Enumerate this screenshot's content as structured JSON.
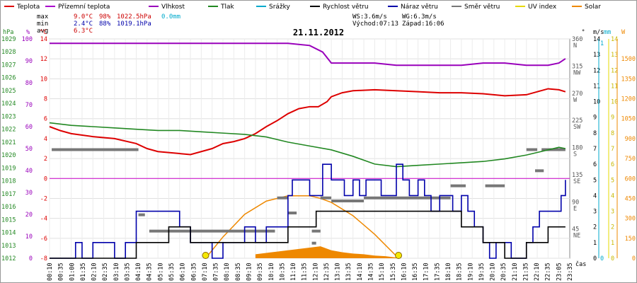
{
  "chart_data": {
    "type": "line",
    "title": "21.11.2012",
    "legend": [
      {
        "label": "Teplota",
        "color": "#dd0000"
      },
      {
        "label": "Přízemní teplota",
        "color": "#aa00cc"
      },
      {
        "label": "Vlhkost",
        "color": "#9900bb"
      },
      {
        "label": "Tlak",
        "color": "#228822"
      },
      {
        "label": "Srážky",
        "color": "#00aacc"
      },
      {
        "label": "Rychlost větru",
        "color": "#000000"
      },
      {
        "label": "Náraz větru",
        "color": "#0000aa"
      },
      {
        "label": "Směr větru",
        "color": "#777777"
      },
      {
        "label": "UV index",
        "color": "#e6d800"
      },
      {
        "label": "Solar",
        "color": "#ee8800"
      }
    ],
    "stats": [
      {
        "label": "max",
        "temp": "9.0°C",
        "hum": "98%",
        "press": "1022.5hPa",
        "rain": "0.0mm"
      },
      {
        "label": "min",
        "temp": "2.4°C",
        "hum": "88%",
        "press": "1019.1hPa",
        "rain": ""
      },
      {
        "label": "avg",
        "temp": "6.3°C",
        "hum": "",
        "press": "",
        "rain": ""
      }
    ],
    "wind_info": {
      "ws": "WS:3.6m/s",
      "wg": "WG:6.3m/s",
      "sunrise": "Východ:07:13",
      "sunset": "Západ:16:06"
    },
    "axes": {
      "hpa": {
        "unit": "hPa",
        "range": [
          1012,
          1029
        ],
        "ticks": [
          1012,
          1013,
          1014,
          1015,
          1016,
          1017,
          1018,
          1019,
          1020,
          1021,
          1022,
          1023,
          1024,
          1025,
          1026,
          1027,
          1028,
          1029
        ]
      },
      "pct": {
        "unit": "%",
        "range": [
          0,
          100
        ],
        "ticks": [
          0,
          10,
          20,
          30,
          40,
          50,
          60,
          70,
          80,
          90,
          100
        ]
      },
      "temp": {
        "unit": "°C",
        "range": [
          -8,
          14
        ],
        "ticks": [
          -8,
          -6,
          -4,
          -2,
          0,
          2,
          4,
          6,
          8,
          10,
          12,
          14
        ]
      },
      "ms": {
        "unit": "m/s",
        "range": [
          0,
          14
        ],
        "ticks": [
          0,
          1,
          2,
          3,
          4,
          5,
          6,
          7,
          8,
          9,
          10,
          11,
          12,
          13,
          14
        ]
      },
      "dir": {
        "ticks": [
          "360 N",
          "315 NW",
          "270 W",
          "225 SW",
          "180 S",
          "135 SE",
          "90 E",
          "45 NE"
        ]
      },
      "mm": {
        "unit": "mm",
        "ticks": [
          "0",
          "1"
        ]
      },
      "uv": {
        "ticks": [
          0,
          1,
          2,
          3,
          4,
          5,
          6,
          7,
          8,
          9,
          10,
          11,
          12,
          13,
          14
        ]
      },
      "solar": {
        "unit": "W",
        "ticks": [
          0,
          150,
          300,
          450,
          600,
          750,
          900,
          1050,
          1200,
          1350,
          1500
        ]
      },
      "x_label": "čas",
      "x_ticks": [
        "00:10",
        "00:35",
        "01:00",
        "01:35",
        "02:10",
        "02:35",
        "03:10",
        "03:35",
        "04:10",
        "04:35",
        "05:10",
        "05:35",
        "06:10",
        "06:35",
        "07:10",
        "07:35",
        "08:10",
        "08:35",
        "09:10",
        "09:35",
        "10:10",
        "10:35",
        "11:10",
        "11:35",
        "12:10",
        "12:35",
        "13:10",
        "13:35",
        "14:10",
        "14:35",
        "15:10",
        "15:35",
        "16:10",
        "16:35",
        "17:10",
        "17:35",
        "18:10",
        "18:35",
        "19:10",
        "19:35",
        "20:10",
        "20:35",
        "21:10",
        "21:35",
        "22:10",
        "22:35",
        "23:05",
        "23:35"
      ]
    },
    "x_range": [
      0,
      24
    ],
    "series": [
      {
        "name": "Vlhkost",
        "color": "#9900bb",
        "axis": "pct",
        "x": [
          0,
          2,
          4,
          6,
          8,
          10,
          11,
          12,
          12.6,
          13,
          14,
          15,
          16,
          17,
          18,
          19,
          20,
          21,
          22,
          22.6,
          23,
          23.5,
          23.8
        ],
        "values": [
          98,
          98,
          98,
          98,
          98,
          98,
          98,
          97,
          94,
          89,
          89,
          89,
          88,
          88,
          88,
          88,
          89,
          89,
          88,
          88,
          88,
          89,
          91
        ]
      },
      {
        "name": "Teplota",
        "color": "#dd0000",
        "axis": "temp",
        "x": [
          0,
          0.5,
          1,
          2,
          3,
          4,
          4.5,
          5,
          6,
          6.5,
          7,
          7.5,
          8,
          8.5,
          9,
          9.5,
          10,
          10.5,
          11,
          11.5,
          12,
          12.4,
          12.8,
          13,
          13.5,
          14,
          15,
          16,
          17,
          18,
          19,
          20,
          21,
          22,
          22.5,
          23,
          23.5,
          23.8
        ],
        "values": [
          5.2,
          4.8,
          4.5,
          4.2,
          4.0,
          3.5,
          3.0,
          2.7,
          2.5,
          2.4,
          2.7,
          3.0,
          3.5,
          3.7,
          4.0,
          4.5,
          5.2,
          5.8,
          6.5,
          7.0,
          7.2,
          7.2,
          7.7,
          8.2,
          8.6,
          8.8,
          8.9,
          8.8,
          8.7,
          8.6,
          8.6,
          8.5,
          8.3,
          8.4,
          8.7,
          9.0,
          8.9,
          8.7
        ]
      },
      {
        "name": "Tlak",
        "color": "#228822",
        "axis": "hpa",
        "x": [
          0,
          1,
          2,
          3,
          4,
          5,
          6,
          7,
          8,
          9,
          10,
          11,
          12,
          13,
          14,
          15,
          16,
          17,
          18,
          19,
          20,
          21,
          22,
          22.5,
          23,
          23.5,
          23.8
        ],
        "values": [
          1022.5,
          1022.3,
          1022.2,
          1022.1,
          1022.0,
          1021.9,
          1021.9,
          1021.8,
          1021.7,
          1021.6,
          1021.4,
          1021.0,
          1020.7,
          1020.4,
          1019.9,
          1019.3,
          1019.1,
          1019.2,
          1019.3,
          1019.4,
          1019.5,
          1019.7,
          1020.0,
          1020.2,
          1020.4,
          1020.6,
          1020.5
        ]
      },
      {
        "name": "Náraz větru",
        "color": "#0000aa",
        "axis": "ms",
        "x": [
          0,
          1,
          1.2,
          1.5,
          2,
          2.5,
          3,
          3.5,
          4,
          4.5,
          5,
          5.5,
          6,
          6.5,
          7,
          7.5,
          8,
          8.5,
          9,
          9.5,
          10,
          10.5,
          11,
          11.2,
          11.5,
          12,
          12.3,
          12.6,
          12.8,
          13,
          13.3,
          13.6,
          14,
          14.3,
          14.6,
          15,
          15.3,
          15.6,
          16,
          16.3,
          16.6,
          17,
          17.3,
          17.6,
          18,
          18.3,
          18.6,
          19,
          19.3,
          19.6,
          20,
          20.3,
          20.6,
          21,
          21.3,
          21.6,
          22,
          22.3,
          22.6,
          23,
          23.3,
          23.6,
          23.8
        ],
        "values": [
          0,
          0,
          1,
          0,
          1,
          1,
          0,
          1,
          3,
          3,
          3,
          3,
          2,
          1,
          1,
          0,
          1,
          1,
          2,
          1,
          2,
          2,
          4,
          5,
          5,
          4,
          4,
          6,
          6,
          5,
          5,
          4,
          5,
          4,
          5,
          5,
          4,
          4,
          6,
          5,
          4,
          5,
          4,
          3,
          4,
          4,
          3,
          4,
          3,
          2,
          1,
          0,
          1,
          1,
          0,
          0,
          1,
          2,
          3,
          3,
          3,
          4,
          5
        ]
      },
      {
        "name": "Rychlost větru",
        "color": "#000000",
        "axis": "ms",
        "x": [
          0,
          1,
          2,
          3,
          3.5,
          4,
          4.5,
          5,
          5.5,
          6,
          6.5,
          7,
          7.5,
          8,
          8.5,
          9,
          9.5,
          10,
          10.5,
          11,
          11.5,
          12,
          12.3,
          12.6,
          13,
          13.5,
          14,
          14.5,
          15,
          15.5,
          16,
          16.5,
          17,
          17.5,
          18,
          18.5,
          19,
          19.5,
          20,
          20.5,
          21,
          21.5,
          22,
          22.5,
          23,
          23.5,
          23.8
        ],
        "values": [
          0,
          0,
          0,
          0,
          0,
          1,
          1,
          1,
          2,
          2,
          1,
          1,
          1,
          1,
          1,
          1,
          1,
          1,
          1,
          2,
          2,
          2,
          3,
          3,
          3,
          3,
          3,
          3,
          3,
          3,
          3,
          3,
          3,
          3,
          3,
          3,
          2,
          2,
          1,
          1,
          0,
          0,
          1,
          1,
          2,
          2,
          2
        ]
      }
    ],
    "solar": {
      "name": "Solar",
      "color": "#ee8800",
      "axis": "solar",
      "x": [
        7.2,
        8,
        9,
        10,
        11,
        12,
        12.5,
        13,
        14,
        15,
        16.1
      ],
      "values": [
        0,
        160,
        330,
        430,
        470,
        470,
        450,
        420,
        320,
        180,
        0
      ]
    },
    "solar_area": {
      "x": [
        9.5,
        10,
        10.5,
        11,
        11.5,
        12,
        12.5,
        13,
        13.5,
        14,
        14.5,
        15,
        15.5,
        16
      ],
      "values": [
        30,
        40,
        50,
        60,
        70,
        80,
        90,
        60,
        45,
        35,
        30,
        20,
        15,
        5
      ]
    },
    "sun_markers": [
      {
        "label": "sunrise",
        "x": 7.2
      },
      {
        "label": "sunset",
        "x": 16.1
      }
    ],
    "direction_segments": [
      {
        "x0": 0.1,
        "x1": 4.1,
        "deg": 180
      },
      {
        "x0": 4.6,
        "x1": 10.4,
        "deg": 45
      },
      {
        "x0": 4.1,
        "x1": 4.4,
        "deg": 72
      },
      {
        "x0": 10.5,
        "x1": 11.0,
        "deg": 100
      },
      {
        "x0": 11.0,
        "x1": 11.4,
        "deg": 75
      },
      {
        "x0": 12.1,
        "x1": 12.5,
        "deg": 45
      },
      {
        "x0": 12.5,
        "x1": 13.0,
        "deg": 100
      },
      {
        "x0": 13.0,
        "x1": 14.5,
        "deg": 95
      },
      {
        "x0": 14.5,
        "x1": 18.5,
        "deg": 100
      },
      {
        "x0": 18.5,
        "x1": 19.2,
        "deg": 120
      },
      {
        "x0": 20.1,
        "x1": 21.0,
        "deg": 120
      },
      {
        "x0": 22.0,
        "x1": 22.5,
        "deg": 180
      },
      {
        "x0": 22.4,
        "x1": 22.8,
        "deg": 145
      },
      {
        "x0": 22.7,
        "x1": 23.8,
        "deg": 180
      },
      {
        "x0": 12.1,
        "x1": 12.3,
        "deg": 25
      }
    ],
    "reference_line": {
      "axis": "temp",
      "value": 0,
      "color": "#cc00cc"
    }
  }
}
